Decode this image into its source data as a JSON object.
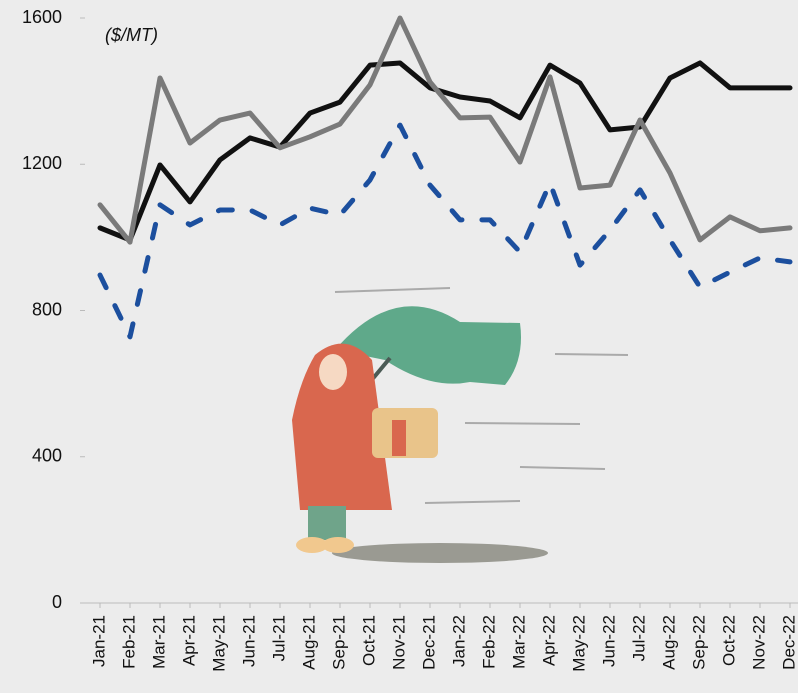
{
  "chart_data": {
    "type": "line",
    "annotation": "($/MT)",
    "categories": [
      "Jan-21",
      "Feb-21",
      "Mar-21",
      "Apr-21",
      "May-21",
      "Jun-21",
      "Jul-21",
      "Aug-21",
      "Sep-21",
      "Oct-21",
      "Nov-21",
      "Dec-21",
      "Jan-22",
      "Feb-22",
      "Mar-22",
      "Apr-22",
      "May-22",
      "Jun-22",
      "Jul-22",
      "Aug-22",
      "Sep-22",
      "Oct-22",
      "Nov-22",
      "Dec-22"
    ],
    "series": [
      {
        "color": "#111111",
        "style": "solid",
        "values": [
          1026,
          993,
          1198,
          1097,
          1212,
          1272,
          1247,
          1340,
          1370,
          1471,
          1477,
          1409,
          1384,
          1373,
          1327,
          1471,
          1422,
          1294,
          1302,
          1436,
          1477,
          1409,
          1409,
          1409
        ]
      },
      {
        "color": "#7a7a7a",
        "style": "solid",
        "values": [
          1089,
          987,
          1436,
          1258,
          1321,
          1340,
          1245,
          1275,
          1310,
          1417,
          1600,
          1425,
          1327,
          1329,
          1206,
          1439,
          1135,
          1143,
          1321,
          1176,
          993,
          1056,
          1018,
          1026
        ]
      },
      {
        "color": "#1c4f9e",
        "style": "dashed",
        "values": [
          897,
          728,
          1089,
          1034,
          1075,
          1075,
          1034,
          1080,
          1061,
          1157,
          1307,
          1143,
          1048,
          1048,
          960,
          1149,
          924,
          1020,
          1130,
          993,
          864,
          905,
          944,
          933
        ]
      }
    ],
    "ylim": [
      0,
      1600
    ],
    "yticks": [
      0,
      400,
      800,
      1200,
      1600
    ],
    "grid": false
  }
}
